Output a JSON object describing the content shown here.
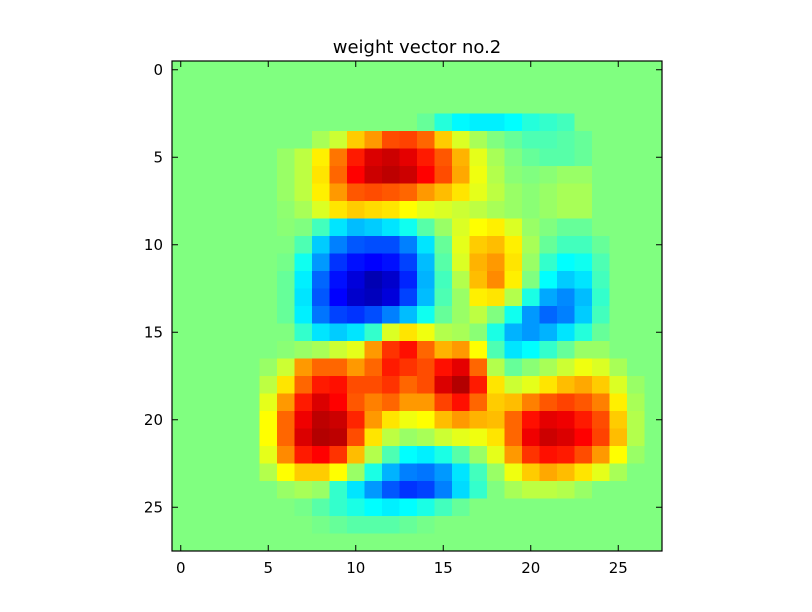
{
  "chart_data": {
    "type": "heatmap",
    "title": "weight vector no.2",
    "xlabel": "",
    "ylabel": "",
    "colormap": "jet",
    "grid": false,
    "legend": "none",
    "rows": 28,
    "cols": 28,
    "xlim": [
      -0.5,
      27.5
    ],
    "ylim": [
      27.5,
      -0.5
    ],
    "x_ticks": [
      0,
      5,
      10,
      15,
      20,
      25
    ],
    "y_ticks": [
      0,
      5,
      10,
      15,
      20,
      25
    ],
    "x_tick_labels": [
      "0",
      "5",
      "10",
      "15",
      "20",
      "25"
    ],
    "y_tick_labels": [
      "0",
      "5",
      "10",
      "15",
      "20",
      "25"
    ],
    "value_range": [
      -1,
      1
    ],
    "values": [
      [
        0,
        0,
        0,
        0,
        0,
        0,
        0,
        0,
        0,
        0,
        0,
        0,
        0,
        0,
        0,
        0,
        0,
        0,
        0,
        0,
        0,
        0,
        0,
        0,
        0,
        0,
        0,
        0
      ],
      [
        0,
        0,
        0,
        0,
        0,
        0,
        0,
        0,
        0,
        0,
        0,
        0,
        0,
        0,
        0,
        0,
        0,
        0,
        0,
        0,
        0,
        0,
        0,
        0,
        0,
        0,
        0,
        0
      ],
      [
        0,
        0,
        0,
        0,
        0,
        0,
        0,
        0,
        0,
        0,
        0,
        0,
        0,
        0,
        0,
        0,
        0,
        0,
        0,
        0,
        0,
        0,
        0,
        0,
        0,
        0,
        0,
        0
      ],
      [
        0,
        0,
        0,
        0,
        0,
        0,
        0,
        0,
        0,
        0,
        0,
        0,
        0,
        0,
        -0.05,
        -0.18,
        -0.26,
        -0.28,
        -0.28,
        -0.25,
        -0.18,
        -0.15,
        -0.12,
        0,
        0,
        0,
        0,
        0
      ],
      [
        0,
        0,
        0,
        0,
        0,
        0,
        0,
        0,
        0.08,
        0.15,
        0.35,
        0.45,
        0.6,
        0.62,
        0.55,
        0.35,
        0.18,
        0.08,
        0,
        -0.05,
        -0.1,
        -0.1,
        -0.08,
        -0.05,
        0,
        0,
        0,
        0
      ],
      [
        0,
        0,
        0,
        0,
        0,
        0,
        0.05,
        0.12,
        0.28,
        0.52,
        0.7,
        0.82,
        0.85,
        0.8,
        0.7,
        0.58,
        0.4,
        0.2,
        0.08,
        0,
        -0.05,
        -0.08,
        -0.08,
        -0.05,
        0,
        0,
        0,
        0
      ],
      [
        0,
        0,
        0,
        0,
        0,
        0,
        0.05,
        0.12,
        0.3,
        0.55,
        0.75,
        0.85,
        0.88,
        0.85,
        0.75,
        0.6,
        0.42,
        0.22,
        0.1,
        0.02,
        0,
        0.02,
        0.05,
        0.05,
        0,
        0,
        0,
        0
      ],
      [
        0,
        0,
        0,
        0,
        0,
        0,
        0.05,
        0.12,
        0.28,
        0.45,
        0.58,
        0.6,
        0.58,
        0.55,
        0.45,
        0.38,
        0.3,
        0.2,
        0.12,
        0.05,
        0.02,
        0.05,
        0.08,
        0.08,
        0,
        0,
        0,
        0
      ],
      [
        0,
        0,
        0,
        0,
        0,
        0,
        0.03,
        0.08,
        0.18,
        0.3,
        0.35,
        0.32,
        0.3,
        0.25,
        0.2,
        0.18,
        0.15,
        0.12,
        0.08,
        0.05,
        0.02,
        0.05,
        0.08,
        0.08,
        0,
        0,
        0,
        0
      ],
      [
        0,
        0,
        0,
        0,
        0,
        0,
        0.02,
        0,
        -0.12,
        -0.3,
        -0.38,
        -0.35,
        -0.3,
        -0.22,
        -0.08,
        0.05,
        0.18,
        0.25,
        0.28,
        0.18,
        0.05,
        0,
        -0.05,
        -0.05,
        0,
        0,
        0,
        0
      ],
      [
        0,
        0,
        0,
        0,
        0,
        0,
        0,
        -0.1,
        -0.35,
        -0.5,
        -0.58,
        -0.6,
        -0.6,
        -0.5,
        -0.3,
        -0.05,
        0.2,
        0.35,
        0.38,
        0.28,
        0.08,
        -0.05,
        -0.12,
        -0.12,
        -0.05,
        0,
        0,
        0
      ],
      [
        0,
        0,
        0,
        0,
        0,
        0,
        -0.02,
        -0.22,
        -0.45,
        -0.65,
        -0.72,
        -0.75,
        -0.72,
        -0.62,
        -0.38,
        -0.08,
        0.18,
        0.4,
        0.45,
        0.3,
        0.05,
        -0.15,
        -0.25,
        -0.22,
        -0.1,
        0,
        0,
        0
      ],
      [
        0,
        0,
        0,
        0,
        0,
        0,
        -0.05,
        -0.28,
        -0.55,
        -0.72,
        -0.82,
        -0.9,
        -0.85,
        -0.68,
        -0.4,
        -0.12,
        0.1,
        0.38,
        0.48,
        0.28,
        0,
        -0.25,
        -0.35,
        -0.3,
        -0.12,
        0,
        0,
        0
      ],
      [
        0,
        0,
        0,
        0,
        0,
        0,
        -0.05,
        -0.3,
        -0.58,
        -0.75,
        -0.85,
        -0.88,
        -0.82,
        -0.62,
        -0.38,
        -0.1,
        0.05,
        0.28,
        0.3,
        0.1,
        -0.2,
        -0.42,
        -0.48,
        -0.38,
        -0.15,
        0,
        0,
        0
      ],
      [
        0,
        0,
        0,
        0,
        0,
        0,
        -0.05,
        -0.28,
        -0.52,
        -0.62,
        -0.65,
        -0.6,
        -0.5,
        -0.38,
        -0.22,
        -0.05,
        0.05,
        0.12,
        0,
        -0.22,
        -0.45,
        -0.55,
        -0.5,
        -0.35,
        -0.12,
        0,
        0,
        0
      ],
      [
        0,
        0,
        0,
        0,
        0,
        0,
        0,
        -0.15,
        -0.3,
        -0.35,
        -0.3,
        -0.15,
        0.18,
        0.3,
        0.22,
        0.1,
        0.08,
        0.02,
        -0.2,
        -0.4,
        -0.45,
        -0.4,
        -0.3,
        -0.18,
        -0.05,
        0,
        0,
        0
      ],
      [
        0,
        0,
        0,
        0,
        0,
        0,
        0.02,
        0.05,
        0.08,
        0.15,
        0.2,
        0.45,
        0.65,
        0.72,
        0.55,
        0.4,
        0.45,
        0.25,
        -0.1,
        -0.3,
        -0.25,
        -0.15,
        -0.05,
        0.05,
        0.05,
        0,
        0,
        0
      ],
      [
        0,
        0,
        0,
        0,
        0,
        0.05,
        0.15,
        0.45,
        0.55,
        0.55,
        0.45,
        0.55,
        0.7,
        0.65,
        0.6,
        0.72,
        0.8,
        0.55,
        0.1,
        -0.05,
        0.02,
        0.08,
        0.15,
        0.22,
        0.18,
        0.08,
        0,
        0
      ],
      [
        0,
        0,
        0,
        0,
        0,
        0.12,
        0.3,
        0.55,
        0.7,
        0.72,
        0.6,
        0.6,
        0.65,
        0.55,
        0.6,
        0.82,
        0.9,
        0.7,
        0.3,
        0.15,
        0.2,
        0.3,
        0.38,
        0.42,
        0.35,
        0.18,
        0.05,
        0
      ],
      [
        0,
        0,
        0,
        0,
        0,
        0.2,
        0.45,
        0.7,
        0.82,
        0.75,
        0.58,
        0.5,
        0.55,
        0.45,
        0.45,
        0.62,
        0.72,
        0.55,
        0.35,
        0.38,
        0.5,
        0.58,
        0.62,
        0.58,
        0.5,
        0.28,
        0.08,
        0
      ],
      [
        0,
        0,
        0,
        0,
        0,
        0.25,
        0.55,
        0.78,
        0.88,
        0.85,
        0.68,
        0.45,
        0.3,
        0.22,
        0.25,
        0.38,
        0.45,
        0.4,
        0.38,
        0.55,
        0.72,
        0.8,
        0.78,
        0.7,
        0.6,
        0.35,
        0.1,
        0
      ],
      [
        0,
        0,
        0,
        0,
        0,
        0.25,
        0.55,
        0.82,
        0.9,
        0.88,
        0.6,
        0.3,
        0.12,
        0.05,
        0.08,
        0.15,
        0.2,
        0.22,
        0.3,
        0.55,
        0.78,
        0.85,
        0.82,
        0.75,
        0.62,
        0.38,
        0.1,
        0
      ],
      [
        0,
        0,
        0,
        0,
        0,
        0.2,
        0.48,
        0.7,
        0.75,
        0.65,
        0.38,
        0.1,
        -0.1,
        -0.25,
        -0.28,
        -0.2,
        -0.08,
        0.05,
        0.2,
        0.45,
        0.65,
        0.72,
        0.7,
        0.6,
        0.45,
        0.25,
        0.05,
        0
      ],
      [
        0,
        0,
        0,
        0,
        0,
        0.1,
        0.25,
        0.35,
        0.35,
        0.25,
        0.05,
        -0.2,
        -0.4,
        -0.5,
        -0.52,
        -0.45,
        -0.3,
        -0.12,
        0.05,
        0.22,
        0.35,
        0.42,
        0.38,
        0.3,
        0.2,
        0.08,
        0,
        0
      ],
      [
        0,
        0,
        0,
        0,
        0,
        0,
        0.05,
        0.08,
        0.05,
        -0.15,
        -0.3,
        -0.45,
        -0.58,
        -0.65,
        -0.62,
        -0.5,
        -0.32,
        -0.15,
        0,
        0.08,
        0.12,
        0.12,
        0.1,
        0.05,
        0,
        0,
        0,
        0
      ],
      [
        0,
        0,
        0,
        0,
        0,
        0,
        0,
        -0.02,
        -0.08,
        -0.15,
        -0.2,
        -0.25,
        -0.28,
        -0.25,
        -0.2,
        -0.12,
        -0.05,
        0,
        0,
        0,
        0,
        0,
        0,
        0,
        0,
        0,
        0,
        0
      ],
      [
        0,
        0,
        0,
        0,
        0,
        0,
        0,
        0,
        -0.02,
        -0.05,
        -0.08,
        -0.08,
        -0.08,
        -0.05,
        -0.02,
        0,
        0,
        0,
        0,
        0,
        0,
        0,
        0,
        0,
        0,
        0,
        0,
        0
      ],
      [
        0,
        0,
        0,
        0,
        0,
        0,
        0,
        0,
        0,
        0,
        0,
        0,
        0,
        0,
        0,
        0,
        0,
        0,
        0,
        0,
        0,
        0,
        0,
        0,
        0,
        0,
        0,
        0
      ]
    ]
  }
}
